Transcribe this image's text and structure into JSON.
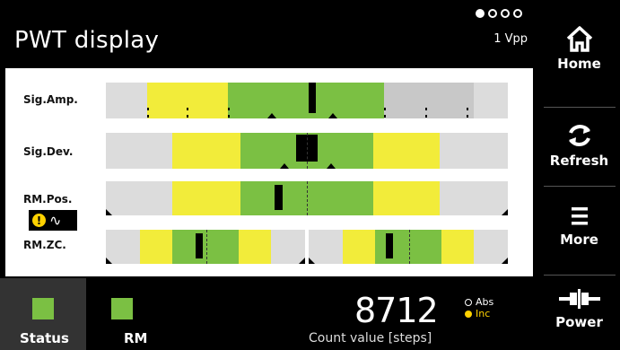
{
  "header": {
    "title": "PWT display",
    "page_indicator": {
      "total": 4,
      "active": 1
    },
    "range": "1 Vpp"
  },
  "rows": [
    {
      "label": "Sig.Amp."
    },
    {
      "label": "Sig.Dev."
    },
    {
      "label": "RM.Pos."
    },
    {
      "label": "RM.ZC."
    }
  ],
  "rm_icon": {
    "icon": "warning-sine-icon",
    "warning_glyph": "!",
    "wave_glyph": "∿"
  },
  "sidebar": {
    "home_label": "Home",
    "refresh_label": "Refresh",
    "more_label": "More",
    "power_label": "Power"
  },
  "bottom": {
    "status_label": "Status",
    "rm_label": "RM",
    "count_value": "8712",
    "count_label": "Count value [steps]",
    "abs_label": "Abs",
    "inc_label": "Inc"
  },
  "colors": {
    "green": "#7bc043",
    "yellow": "#f2ec3a",
    "light_gray": "#dcdcdc",
    "mid_gray": "#c8c8c8",
    "inc_dot": "#ffd200"
  }
}
